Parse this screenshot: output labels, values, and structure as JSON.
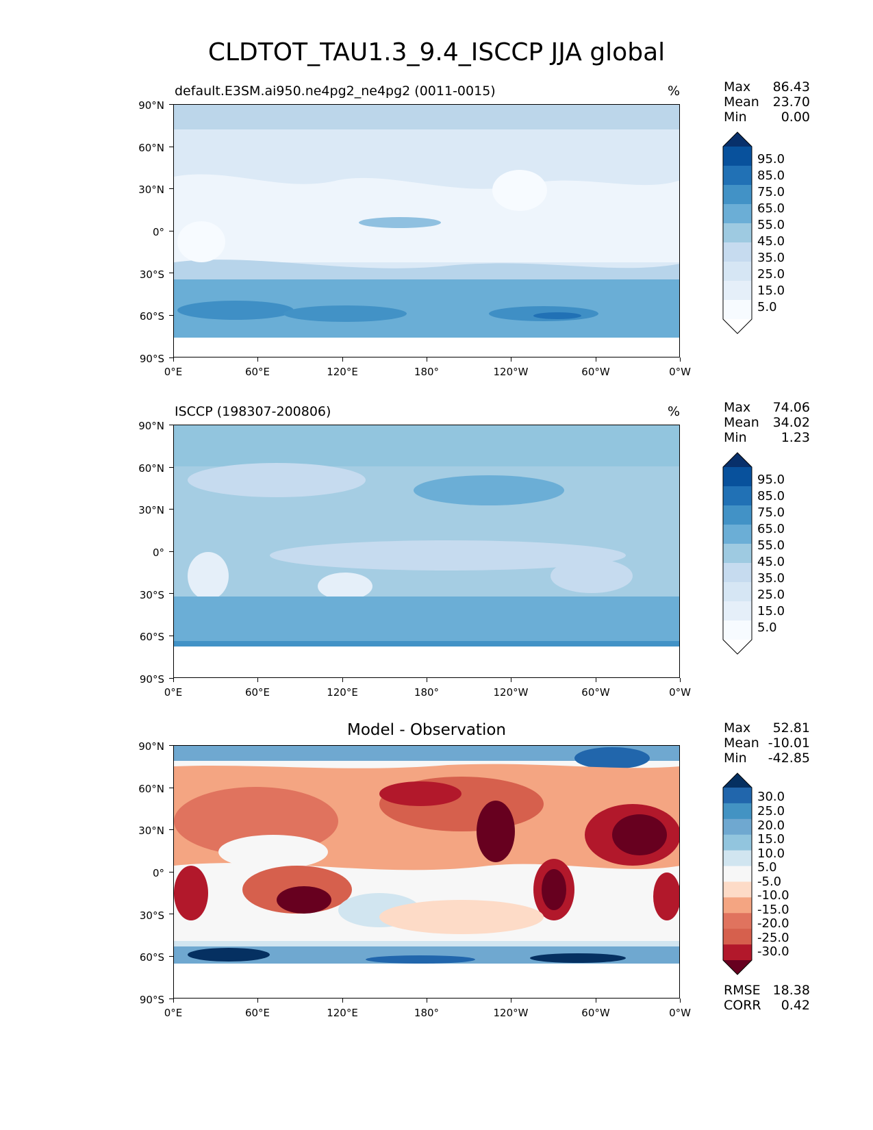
{
  "title": "CLDTOT_TAU1.3_9.4_ISCCP JJA global",
  "lat_labels": [
    "90°N",
    "60°N",
    "30°N",
    "0°",
    "30°S",
    "60°S",
    "90°S"
  ],
  "lon_labels": [
    "0°E",
    "60°E",
    "120°E",
    "180°",
    "120°W",
    "60°W",
    "0°W"
  ],
  "panels": [
    {
      "title": "default.E3SM.ai950.ne4pg2_ne4pg2 (0011-0015)",
      "units": "%",
      "stats": {
        "max_label": "Max",
        "max": "86.43",
        "mean_label": "Mean",
        "mean": "23.70",
        "min_label": "Min",
        "min": "0.00"
      },
      "colorbar": {
        "colors": [
          "#08306b",
          "#08519c",
          "#2171b5",
          "#4292c6",
          "#6baed6",
          "#9ecae1",
          "#c6dbef",
          "#d6e6f4",
          "#e5eff9",
          "#f7fbff",
          "#ffffff"
        ],
        "ticks": [
          "95.0",
          "85.0",
          "75.0",
          "65.0",
          "55.0",
          "45.0",
          "35.0",
          "25.0",
          "15.0",
          "5.0"
        ]
      }
    },
    {
      "title": "ISCCP (198307-200806)",
      "units": "%",
      "stats": {
        "max_label": "Max",
        "max": "74.06",
        "mean_label": "Mean",
        "mean": "34.02",
        "min_label": "Min",
        "min": "1.23"
      },
      "colorbar": {
        "colors": [
          "#08306b",
          "#08519c",
          "#2171b5",
          "#4292c6",
          "#6baed6",
          "#9ecae1",
          "#c6dbef",
          "#d6e6f4",
          "#e5eff9",
          "#f7fbff",
          "#ffffff"
        ],
        "ticks": [
          "95.0",
          "85.0",
          "75.0",
          "65.0",
          "55.0",
          "45.0",
          "35.0",
          "25.0",
          "15.0",
          "5.0"
        ]
      }
    },
    {
      "title": "Model - Observation",
      "stats": {
        "max_label": "Max",
        "max": "52.81",
        "mean_label": "Mean",
        "mean": "-10.01",
        "min_label": "Min",
        "min": "-42.85"
      },
      "metrics": {
        "rmse_label": "RMSE",
        "rmse": "18.38",
        "corr_label": "CORR",
        "corr": "0.42"
      },
      "colorbar": {
        "colors": [
          "#053061",
          "#2166ac",
          "#4393c3",
          "#6fa8d0",
          "#92c5de",
          "#d1e5f0",
          "#f7f7f7",
          "#fddbc7",
          "#f4a582",
          "#e0735e",
          "#d6604d",
          "#b2182b",
          "#67001f"
        ],
        "ticks": [
          "30.0",
          "25.0",
          "20.0",
          "15.0",
          "10.0",
          "5.0",
          "-5.0",
          "-10.0",
          "-15.0",
          "-20.0",
          "-25.0",
          "-30.0"
        ]
      }
    }
  ]
}
